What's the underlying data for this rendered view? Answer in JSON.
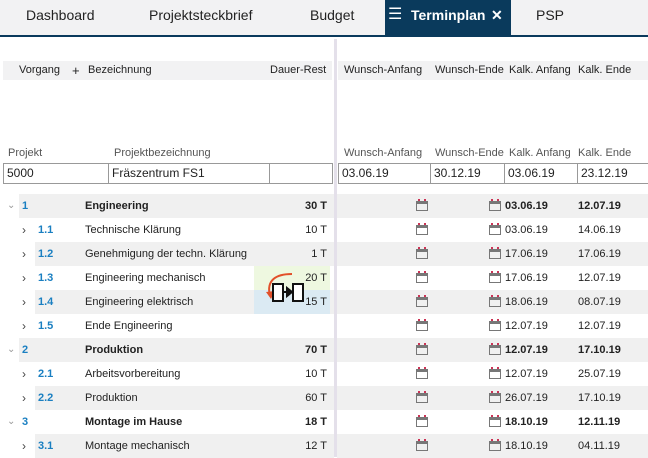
{
  "tabs": [
    {
      "label": "Dashboard"
    },
    {
      "label": "Projektsteckbrief"
    },
    {
      "label": "Budget"
    },
    {
      "label": "Terminplan",
      "active": true
    },
    {
      "label": "PSP"
    }
  ],
  "header": {
    "vorgang": "Vorgang",
    "plus": "+",
    "bezeichnung": "Bezeichnung",
    "dauer": "Dauer-Rest",
    "wunsch_anfang": "Wunsch-Anfang",
    "wunsch_ende": "Wunsch-Ende",
    "kalk_anfang": "Kalk. Anfang",
    "kalk_ende": "Kalk. Ende"
  },
  "project": {
    "labels": {
      "projekt": "Projekt",
      "bezeichnung": "Projektbezeichnung",
      "wunsch_anfang": "Wunsch-Anfang",
      "wunsch_ende": "Wunsch-Ende",
      "kalk_anfang": "Kalk. Anfang",
      "kalk_ende": "Kalk. Ende"
    },
    "projekt": "5000",
    "bezeichnung": "Fräszentrum FS1",
    "wunsch_anfang": "03.06.19",
    "wunsch_ende": "30.12.19",
    "kalk_anfang": "03.06.19",
    "kalk_ende": "23.12.19"
  },
  "rows": [
    {
      "id": "1",
      "name": "Engineering",
      "dauer": "30 T",
      "kalk_anfang": "03.06.19",
      "kalk_ende": "12.07.19",
      "level": 0,
      "expanded": true
    },
    {
      "id": "1.1",
      "name": "Technische Klärung",
      "dauer": "10 T",
      "kalk_anfang": "03.06.19",
      "kalk_ende": "14.06.19",
      "level": 1
    },
    {
      "id": "1.2",
      "name": "Genehmigung der techn. Klärung",
      "dauer": "1 T",
      "kalk_anfang": "17.06.19",
      "kalk_ende": "17.06.19",
      "level": 1
    },
    {
      "id": "1.3",
      "name": "Engineering mechanisch",
      "dauer": "20 T",
      "kalk_anfang": "17.06.19",
      "kalk_ende": "12.07.19",
      "level": 1
    },
    {
      "id": "1.4",
      "name": "Engineering elektrisch",
      "dauer": "15 T",
      "kalk_anfang": "18.06.19",
      "kalk_ende": "08.07.19",
      "level": 1
    },
    {
      "id": "1.5",
      "name": "Ende Engineering",
      "dauer": "",
      "kalk_anfang": "12.07.19",
      "kalk_ende": "12.07.19",
      "level": 1
    },
    {
      "id": "2",
      "name": "Produktion",
      "dauer": "70 T",
      "kalk_anfang": "12.07.19",
      "kalk_ende": "17.10.19",
      "level": 0,
      "expanded": true
    },
    {
      "id": "2.1",
      "name": "Arbeitsvorbereitung",
      "dauer": "10 T",
      "kalk_anfang": "12.07.19",
      "kalk_ende": "25.07.19",
      "level": 1
    },
    {
      "id": "2.2",
      "name": "Produktion",
      "dauer": "60 T",
      "kalk_anfang": "26.07.19",
      "kalk_ende": "17.10.19",
      "level": 1
    },
    {
      "id": "3",
      "name": "Montage im Hause",
      "dauer": "18 T",
      "kalk_anfang": "18.10.19",
      "kalk_ende": "12.11.19",
      "level": 0,
      "expanded": true
    },
    {
      "id": "3.1",
      "name": "Montage mechanisch",
      "dauer": "12 T",
      "kalk_anfang": "18.10.19",
      "kalk_ende": "04.11.19",
      "level": 1
    }
  ],
  "colors": {
    "accent": "#0a3a5c",
    "link": "#1a7fc1",
    "highlight_green": "#eef8e0",
    "highlight_blue": "#dbeaf3",
    "arrow": "#e2502a"
  }
}
